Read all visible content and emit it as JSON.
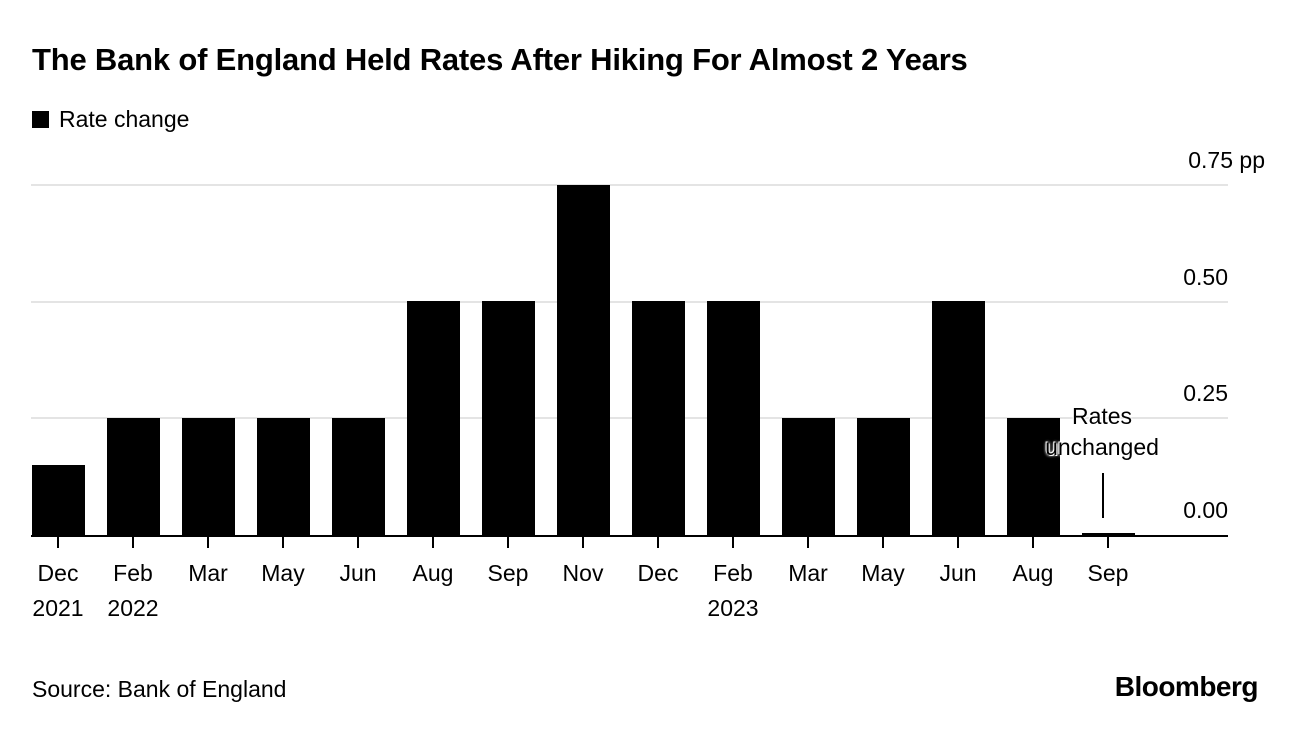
{
  "title": "The Bank of England Held Rates After Hiking For Almost 2 Years",
  "legend": {
    "label": "Rate change",
    "swatch_color": "#000000"
  },
  "annotation": {
    "line1": "Rates",
    "line2": "unchanged"
  },
  "footer": {
    "source": "Source: Bank of England",
    "logo": "Bloomberg"
  },
  "colors": {
    "bar": "#000000",
    "grid": "#e4e4e4",
    "text": "#000000",
    "background": "#ffffff"
  },
  "chart_data": {
    "type": "bar",
    "title": "The Bank of England Held Rates After Hiking For Almost 2 Years",
    "series_name": "Rate change",
    "unit": "pp",
    "categories": [
      {
        "month": "Dec",
        "year": "2021"
      },
      {
        "month": "Feb",
        "year": "2022"
      },
      {
        "month": "Mar"
      },
      {
        "month": "May"
      },
      {
        "month": "Jun"
      },
      {
        "month": "Aug"
      },
      {
        "month": "Sep"
      },
      {
        "month": "Nov"
      },
      {
        "month": "Dec"
      },
      {
        "month": "Feb",
        "year": "2023"
      },
      {
        "month": "Mar"
      },
      {
        "month": "May"
      },
      {
        "month": "Jun"
      },
      {
        "month": "Aug"
      },
      {
        "month": "Sep"
      }
    ],
    "values": [
      0.15,
      0.25,
      0.25,
      0.25,
      0.25,
      0.5,
      0.5,
      0.75,
      0.5,
      0.5,
      0.25,
      0.25,
      0.5,
      0.25,
      0.0
    ],
    "y_ticks": [
      {
        "label": "0.00",
        "value": 0.0
      },
      {
        "label": "0.25",
        "value": 0.25
      },
      {
        "label": "0.50",
        "value": 0.5
      },
      {
        "label": "0.75",
        "value": 0.75,
        "suffix": " pp"
      }
    ],
    "ylim": [
      0,
      0.75
    ],
    "grid": "horizontal",
    "value_axis_side": "right",
    "legend_position": "top-left",
    "annotation_text": "Rates unchanged",
    "annotation_target_month": "Sep 2023"
  }
}
